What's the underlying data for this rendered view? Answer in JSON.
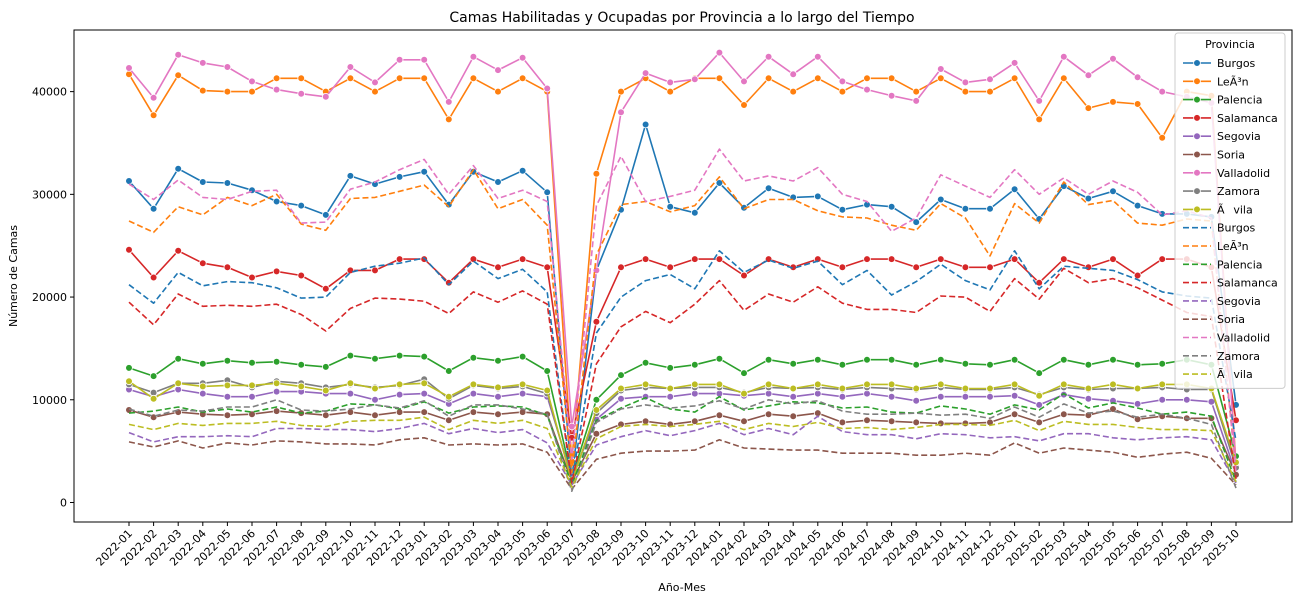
{
  "chart_data": {
    "type": "line",
    "title": "Camas Habilitadas y Ocupadas por Provincia a lo largo del Tiempo",
    "xlabel": "Año-Mes",
    "ylabel": "Número de Camas",
    "ylim": [
      -1900,
      46000
    ],
    "yticks": [
      0,
      10000,
      20000,
      30000,
      40000
    ],
    "grid": false,
    "legend": {
      "title": "Provincia",
      "placement": "top-right"
    },
    "categories": [
      "2022-01",
      "2022-02",
      "2022-03",
      "2022-04",
      "2022-05",
      "2022-06",
      "2022-07",
      "2022-08",
      "2022-09",
      "2022-10",
      "2022-11",
      "2022-12",
      "2023-01",
      "2023-02",
      "2023-03",
      "2023-04",
      "2023-05",
      "2023-06",
      "2023-07",
      "2023-08",
      "2023-09",
      "2023-10",
      "2023-11",
      "2023-12",
      "2024-01",
      "2024-02",
      "2024-03",
      "2024-04",
      "2024-05",
      "2024-06",
      "2024-07",
      "2024-08",
      "2024-09",
      "2024-10",
      "2024-11",
      "2024-12",
      "2025-01",
      "2025-02",
      "2025-03",
      "2025-04",
      "2025-05",
      "2025-06",
      "2025-07",
      "2025-08",
      "2025-09",
      "2025-10"
    ],
    "series": [
      {
        "name": "Burgos",
        "color": "#1f77b4",
        "style": "solid",
        "values": [
          31300,
          28600,
          32500,
          31200,
          31100,
          30400,
          29300,
          28900,
          28000,
          31800,
          31000,
          31700,
          32200,
          29000,
          32200,
          31200,
          32300,
          30200,
          2300,
          22600,
          28500,
          36800,
          28800,
          28200,
          31100,
          28700,
          30600,
          29700,
          29800,
          28500,
          29000,
          28800,
          27300,
          29500,
          28600,
          28600,
          30500,
          27600,
          30800,
          29600,
          30300,
          28900,
          28100,
          28100,
          27800,
          9500
        ]
      },
      {
        "name": "LeÃ³n",
        "color": "#ff7f0e",
        "style": "solid",
        "values": [
          41700,
          37700,
          41600,
          40100,
          40000,
          40000,
          41300,
          41300,
          40000,
          41300,
          40000,
          41300,
          41300,
          37300,
          41300,
          40000,
          41300,
          40000,
          4000,
          32000,
          40000,
          41300,
          40000,
          41300,
          41300,
          38700,
          41300,
          40000,
          41300,
          40000,
          41300,
          41300,
          40000,
          41300,
          40000,
          40000,
          41300,
          37300,
          41300,
          38400,
          39000,
          38800,
          35500,
          40000,
          39600,
          3800
        ]
      },
      {
        "name": "Palencia",
        "color": "#2ca02c",
        "style": "solid",
        "values": [
          13100,
          12300,
          14000,
          13500,
          13800,
          13600,
          13700,
          13400,
          13200,
          14300,
          14000,
          14300,
          14200,
          12800,
          14100,
          13800,
          14200,
          12800,
          2400,
          10000,
          12400,
          13600,
          13100,
          13400,
          14000,
          12600,
          13900,
          13500,
          13900,
          13400,
          13900,
          13900,
          13400,
          13900,
          13500,
          13400,
          13900,
          12600,
          13900,
          13400,
          13900,
          13400,
          13500,
          13900,
          13400,
          4500
        ]
      },
      {
        "name": "Salamanca",
        "color": "#d62728",
        "style": "solid",
        "values": [
          24600,
          21900,
          24500,
          23300,
          22900,
          21900,
          22500,
          22100,
          20800,
          22600,
          22600,
          23700,
          23700,
          21400,
          23700,
          22900,
          23700,
          22900,
          6300,
          17600,
          22900,
          23700,
          22900,
          23700,
          23700,
          22100,
          23700,
          22900,
          23700,
          22900,
          23700,
          23700,
          22900,
          23700,
          22900,
          22900,
          23700,
          21400,
          23700,
          22900,
          23700,
          22100,
          23700,
          23700,
          22900,
          8000
        ]
      },
      {
        "name": "Segovia",
        "color": "#9467bd",
        "style": "solid",
        "values": [
          11000,
          10300,
          11000,
          10600,
          10300,
          10300,
          10800,
          10800,
          10600,
          10600,
          10000,
          10500,
          10600,
          9600,
          10600,
          10300,
          10600,
          10300,
          2500,
          8100,
          10100,
          10300,
          10300,
          10600,
          10600,
          10400,
          10600,
          10300,
          10600,
          10300,
          10600,
          10300,
          9900,
          10300,
          10300,
          10300,
          10400,
          9500,
          10500,
          10100,
          9900,
          9600,
          10000,
          10000,
          9800,
          2800
        ]
      },
      {
        "name": "Soria",
        "color": "#8c564b",
        "style": "solid",
        "values": [
          9000,
          8300,
          8800,
          8600,
          8500,
          8600,
          8900,
          8700,
          8500,
          8800,
          8500,
          8800,
          8800,
          8000,
          8800,
          8600,
          8800,
          8600,
          2000,
          6700,
          7600,
          7900,
          7600,
          7900,
          8500,
          7900,
          8600,
          8400,
          8700,
          7800,
          8000,
          7900,
          7800,
          7700,
          7700,
          7800,
          8600,
          7800,
          8600,
          8500,
          9100,
          8100,
          8400,
          8200,
          8200,
          2700
        ]
      },
      {
        "name": "Valladolid",
        "color": "#e377c2",
        "style": "solid",
        "values": [
          42300,
          39400,
          43600,
          42800,
          42400,
          41000,
          40200,
          39800,
          39500,
          42400,
          40900,
          43100,
          43100,
          39000,
          43400,
          42100,
          43300,
          40300,
          7400,
          22600,
          38000,
          41800,
          40900,
          41200,
          43800,
          41000,
          43400,
          41700,
          43400,
          41000,
          40200,
          39600,
          39100,
          42200,
          40900,
          41200,
          42800,
          39100,
          43400,
          41600,
          43200,
          41400,
          40000,
          39500,
          38900,
          3600
        ]
      },
      {
        "name": "Zamora",
        "color": "#7f7f7f",
        "style": "solid",
        "values": [
          11500,
          10700,
          11600,
          11600,
          11900,
          11200,
          11800,
          11600,
          11200,
          11500,
          11200,
          11400,
          12000,
          10100,
          11400,
          11100,
          11300,
          10600,
          2200,
          8700,
          10900,
          11200,
          11100,
          11200,
          11200,
          10700,
          11200,
          11100,
          11200,
          11000,
          11200,
          11100,
          11000,
          11200,
          11000,
          11000,
          11200,
          10500,
          11200,
          11000,
          11100,
          11100,
          11200,
          11000,
          11000,
          3400
        ]
      },
      {
        "name": "Ãvila",
        "color": "#bcbd22",
        "style": "solid",
        "values": [
          11800,
          10100,
          11600,
          11300,
          11400,
          11400,
          11600,
          11300,
          10900,
          11600,
          11100,
          11500,
          11600,
          10300,
          11500,
          11200,
          11500,
          10900,
          2000,
          9000,
          11100,
          11500,
          11100,
          11500,
          11500,
          10600,
          11500,
          11100,
          11500,
          11100,
          11500,
          11500,
          11100,
          11500,
          11100,
          11100,
          11500,
          10400,
          11500,
          11100,
          11500,
          11100,
          11500,
          11500,
          11100,
          3900
        ]
      },
      {
        "name": "Burgos",
        "color": "#1f77b4",
        "style": "dashed",
        "values": [
          21200,
          19400,
          22400,
          21100,
          21500,
          21400,
          20900,
          19900,
          20000,
          22400,
          23000,
          23300,
          23800,
          21200,
          23500,
          21800,
          22700,
          20500,
          2000,
          16500,
          20000,
          21600,
          22200,
          20800,
          24500,
          22400,
          23600,
          22800,
          23500,
          21200,
          22600,
          20200,
          21500,
          23200,
          21600,
          20700,
          24500,
          20800,
          23000,
          22800,
          22600,
          21700,
          20500,
          20100,
          19900,
          6000
        ]
      },
      {
        "name": "LeÃ³n",
        "color": "#ff7f0e",
        "style": "dashed",
        "values": [
          27400,
          26300,
          28800,
          28000,
          29700,
          28900,
          30000,
          27100,
          26500,
          29600,
          29700,
          30300,
          30900,
          28800,
          32400,
          28600,
          29500,
          27000,
          2900,
          24100,
          29000,
          29300,
          28300,
          28900,
          31700,
          28600,
          29500,
          29500,
          28400,
          27800,
          27700,
          27000,
          26500,
          29100,
          27700,
          24000,
          29100,
          27200,
          31200,
          29000,
          29400,
          27200,
          27000,
          27600,
          27400,
          3000
        ]
      },
      {
        "name": "Palencia",
        "color": "#2ca02c",
        "style": "dashed",
        "values": [
          8700,
          8900,
          9300,
          8800,
          9100,
          8800,
          9300,
          8700,
          8900,
          9600,
          9500,
          9100,
          9800,
          8700,
          9300,
          9400,
          9300,
          8500,
          1700,
          8000,
          9200,
          10200,
          9100,
          8800,
          10300,
          9000,
          9400,
          9800,
          9700,
          9200,
          9300,
          8800,
          8700,
          9400,
          9100,
          8600,
          9500,
          9000,
          10600,
          9200,
          9700,
          9200,
          8600,
          8800,
          8400,
          2000
        ]
      },
      {
        "name": "Salamanca",
        "color": "#d62728",
        "style": "dashed",
        "values": [
          19500,
          17300,
          20300,
          19100,
          19200,
          19100,
          19300,
          18300,
          16700,
          18900,
          19900,
          19800,
          19600,
          18400,
          20500,
          19500,
          20600,
          19300,
          1900,
          13500,
          17100,
          18600,
          17500,
          19300,
          21600,
          18700,
          20300,
          19500,
          21000,
          19400,
          18800,
          18800,
          18500,
          20100,
          20000,
          18600,
          21800,
          19800,
          22800,
          21400,
          21800,
          20900,
          19700,
          18500,
          18100,
          2300
        ]
      },
      {
        "name": "Segovia",
        "color": "#9467bd",
        "style": "dashed",
        "values": [
          6800,
          5900,
          6400,
          6400,
          6500,
          6400,
          7200,
          7200,
          7100,
          7100,
          6900,
          7200,
          7700,
          6700,
          7200,
          6800,
          7100,
          5800,
          1700,
          5600,
          6400,
          7000,
          6500,
          7000,
          7700,
          6600,
          7200,
          6600,
          8400,
          6900,
          6600,
          6600,
          6200,
          6700,
          6600,
          6300,
          6400,
          6000,
          6700,
          6700,
          6300,
          6100,
          6300,
          6400,
          6100,
          1900
        ]
      },
      {
        "name": "Soria",
        "color": "#8c564b",
        "style": "dashed",
        "values": [
          5900,
          5400,
          6000,
          5300,
          5800,
          5600,
          6000,
          5900,
          5700,
          5700,
          5600,
          6100,
          6300,
          5600,
          5700,
          5600,
          5700,
          4900,
          1300,
          4200,
          4800,
          5000,
          5000,
          5100,
          6100,
          5300,
          5200,
          5100,
          5100,
          4800,
          4800,
          4800,
          4600,
          4600,
          4800,
          4600,
          5800,
          4800,
          5300,
          5100,
          4900,
          4400,
          4700,
          4900,
          4300,
          1700
        ]
      },
      {
        "name": "Valladolid",
        "color": "#e377c2",
        "style": "dashed",
        "values": [
          31000,
          29500,
          31400,
          29700,
          29500,
          30300,
          30400,
          27200,
          27300,
          30500,
          31200,
          32400,
          33400,
          30000,
          32800,
          29600,
          30400,
          29300,
          4200,
          28900,
          33700,
          29300,
          29800,
          30400,
          34400,
          31300,
          31800,
          31300,
          32600,
          30000,
          29300,
          26400,
          27700,
          31900,
          30800,
          29700,
          32400,
          30000,
          31600,
          30000,
          31300,
          30200,
          28000,
          28400,
          27700,
          2900
        ]
      },
      {
        "name": "Zamora",
        "color": "#7f7f7f",
        "style": "dashed",
        "values": [
          9100,
          8400,
          9000,
          8900,
          9300,
          9300,
          10000,
          9000,
          8900,
          9100,
          9500,
          9200,
          9900,
          8400,
          9500,
          9500,
          9100,
          8600,
          1100,
          7800,
          9100,
          9500,
          9200,
          9400,
          9900,
          9100,
          10000,
          9600,
          9900,
          8900,
          8600,
          8600,
          8700,
          8500,
          8600,
          8200,
          9300,
          8300,
          9600,
          8700,
          8900,
          8300,
          8600,
          8200,
          7600,
          1400
        ]
      },
      {
        "name": "Ãvila",
        "color": "#bcbd22",
        "style": "dashed",
        "values": [
          7600,
          7100,
          7700,
          7500,
          7700,
          7700,
          7900,
          7500,
          7400,
          7900,
          8000,
          8000,
          8300,
          7100,
          8000,
          7700,
          8000,
          7200,
          1500,
          6200,
          7400,
          7600,
          7400,
          7600,
          7900,
          7100,
          7700,
          7400,
          7800,
          7200,
          7300,
          7100,
          7300,
          7600,
          7600,
          7500,
          8000,
          7000,
          7900,
          7600,
          7600,
          7300,
          7100,
          7100,
          7000,
          2000
        ]
      }
    ]
  }
}
